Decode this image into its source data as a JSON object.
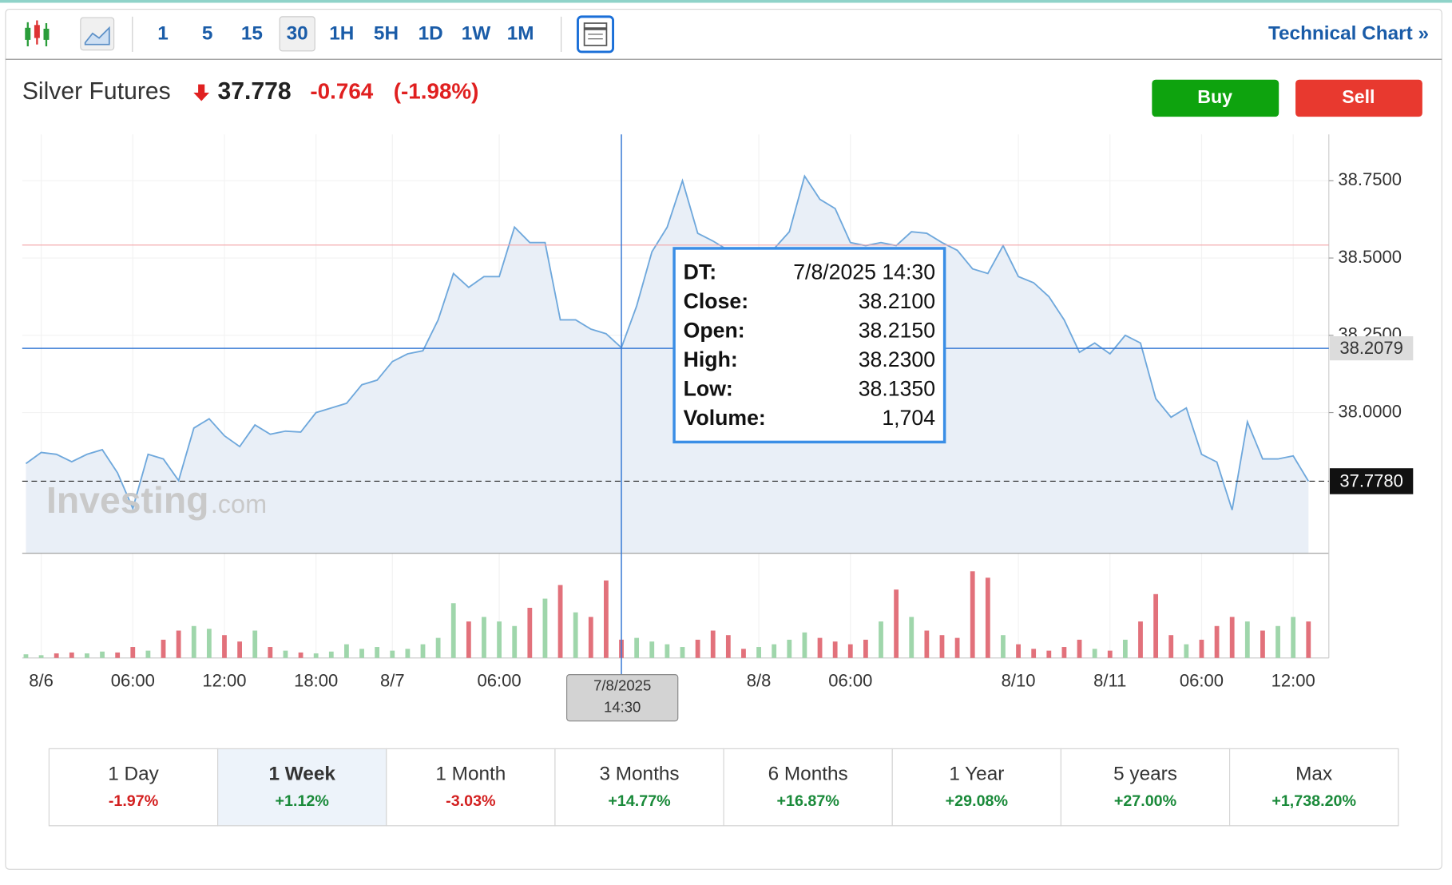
{
  "toolbar": {
    "intervals": [
      {
        "label": "1"
      },
      {
        "label": "5"
      },
      {
        "label": "15"
      },
      {
        "label": "30",
        "active": true
      },
      {
        "label": "1H"
      },
      {
        "label": "5H"
      },
      {
        "label": "1D"
      },
      {
        "label": "1W"
      },
      {
        "label": "1M"
      }
    ],
    "link": "Technical Chart »"
  },
  "quote": {
    "name": "Silver Futures",
    "price": "37.778",
    "change": "-0.764",
    "change_pct": "(-1.98%)"
  },
  "buttons": {
    "buy": "Buy",
    "sell": "Sell"
  },
  "chart_data": {
    "type": "line",
    "categories": [
      null,
      "8/6",
      null,
      null,
      null,
      null,
      null,
      "06:00",
      null,
      null,
      null,
      null,
      null,
      "12:00",
      null,
      null,
      null,
      null,
      null,
      "18:00",
      null,
      null,
      null,
      null,
      "8/7",
      null,
      null,
      null,
      null,
      null,
      null,
      "06:00",
      null,
      null,
      null,
      null,
      null,
      null,
      null,
      null,
      null,
      null,
      null,
      null,
      null,
      null,
      null,
      null,
      "8/8",
      null,
      null,
      null,
      null,
      null,
      "06:00",
      null,
      null,
      null,
      null,
      null,
      null,
      null,
      null,
      null,
      null,
      "8/10",
      null,
      null,
      null,
      null,
      null,
      "8/11",
      null,
      null,
      null,
      null,
      null,
      "06:00",
      null,
      null,
      null,
      null,
      null,
      "12:00",
      null
    ],
    "values": [
      37.835,
      37.871,
      37.865,
      37.841,
      37.865,
      37.88,
      37.805,
      37.69,
      37.865,
      37.85,
      37.78,
      37.95,
      37.98,
      37.925,
      37.89,
      37.96,
      37.93,
      37.94,
      37.937,
      38.0,
      38.015,
      38.03,
      38.09,
      38.105,
      38.165,
      38.19,
      38.2,
      38.3,
      38.45,
      38.405,
      38.44,
      38.44,
      38.6,
      38.55,
      38.55,
      38.3,
      38.3,
      38.27,
      38.255,
      38.21,
      38.345,
      38.52,
      38.6,
      38.75,
      38.58,
      38.555,
      38.525,
      38.51,
      38.52,
      38.53,
      38.585,
      38.765,
      38.69,
      38.66,
      38.55,
      38.54,
      38.55,
      38.54,
      38.585,
      38.58,
      38.55,
      38.525,
      38.465,
      38.45,
      38.54,
      38.44,
      38.42,
      38.375,
      38.3,
      38.195,
      38.225,
      38.19,
      38.25,
      38.225,
      38.045,
      37.985,
      38.015,
      37.865,
      37.84,
      37.685,
      37.97,
      37.85,
      37.85,
      37.86,
      37.778
    ],
    "volume": [
      340,
      255,
      425,
      510,
      425,
      595,
      510,
      1020,
      680,
      1700,
      2550,
      2975,
      2720,
      2125,
      1530,
      2550,
      1020,
      680,
      510,
      425,
      595,
      1275,
      850,
      1020,
      680,
      850,
      1275,
      1870,
      5100,
      3400,
      3825,
      3400,
      2975,
      4675,
      5525,
      6800,
      4250,
      3825,
      7225,
      1704,
      1870,
      1530,
      1275,
      1020,
      1700,
      2550,
      2125,
      850,
      1020,
      1275,
      1700,
      2380,
      1870,
      1530,
      1275,
      1700,
      3400,
      6375,
      3825,
      2550,
      2125,
      1870,
      8075,
      7480,
      2125,
      1275,
      850,
      680,
      1020,
      1700,
      850,
      680,
      1700,
      3400,
      5950,
      2125,
      1275,
      1700,
      2975,
      3825,
      3400,
      2550,
      2975,
      3825,
      3400
    ],
    "color": "#6fa8dc",
    "area_color": "#e9eff7",
    "volume_up_color": "#9fd6ab",
    "volume_down_color": "#e2717b",
    "ylim": [
      37.545,
      38.9
    ],
    "yticks": [
      {
        "value": 38.0,
        "label": "38.0000"
      },
      {
        "value": 38.25,
        "label": "38.2500"
      },
      {
        "value": 38.5,
        "label": "38.5000"
      },
      {
        "value": 38.75,
        "label": "38.7500"
      }
    ],
    "volume_ylim": [
      0,
      9500
    ],
    "grid": true,
    "prev_close": 38.542,
    "last_price": {
      "value": 37.778,
      "label": "37.7780"
    },
    "cursor": {
      "index": 39,
      "value": 38.2079,
      "label": "38.2079",
      "x_label": [
        "7/8/2025",
        "14:30"
      ]
    }
  },
  "tooltip": {
    "rows": [
      [
        "DT:",
        "7/8/2025 14:30"
      ],
      [
        "Close:",
        "38.2100"
      ],
      [
        "Open:",
        "38.2150"
      ],
      [
        "High:",
        "38.2300"
      ],
      [
        "Low:",
        "38.1350"
      ],
      [
        "Volume:",
        "1,704"
      ]
    ]
  },
  "watermark": [
    "Investing",
    ".com"
  ],
  "periods": [
    {
      "label": "1 Day",
      "change": "-1.97%"
    },
    {
      "label": "1 Week",
      "change": "+1.12%",
      "active": true
    },
    {
      "label": "1 Month",
      "change": "-3.03%"
    },
    {
      "label": "3 Months",
      "change": "+14.77%"
    },
    {
      "label": "6 Months",
      "change": "+16.87%"
    },
    {
      "label": "1 Year",
      "change": "+29.08%"
    },
    {
      "label": "5 years",
      "change": "+27.00%"
    },
    {
      "label": "Max",
      "change": "+1,738.20%"
    }
  ]
}
